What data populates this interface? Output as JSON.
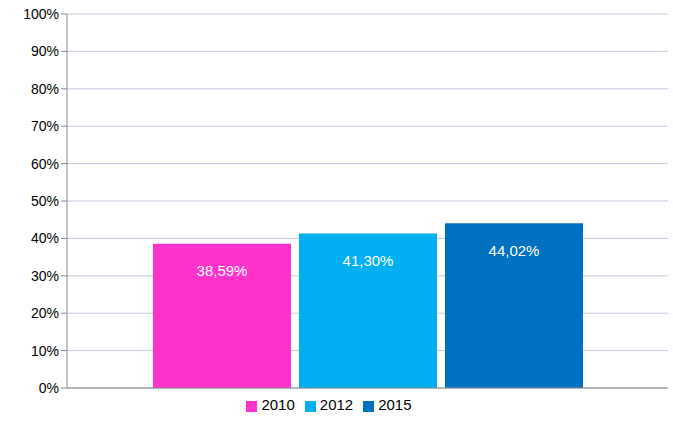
{
  "chart_data": {
    "type": "bar",
    "categories": [
      null
    ],
    "series": [
      {
        "name": "2010",
        "color": "#ff33cc",
        "values": [
          38.59
        ],
        "value_labels": [
          "38,59%"
        ]
      },
      {
        "name": "2012",
        "color": "#00b0f0",
        "values": [
          41.3
        ],
        "value_labels": [
          "41,30%"
        ]
      },
      {
        "name": "2015",
        "color": "#0070c0",
        "values": [
          44.02
        ],
        "value_labels": [
          "44,02%"
        ]
      }
    ],
    "ylim": [
      0,
      100
    ],
    "yticks": [
      {
        "value": 0,
        "label": "0%"
      },
      {
        "value": 10,
        "label": "10%"
      },
      {
        "value": 20,
        "label": "20%"
      },
      {
        "value": 30,
        "label": "30%"
      },
      {
        "value": 40,
        "label": "40%"
      },
      {
        "value": 50,
        "label": "50%"
      },
      {
        "value": 60,
        "label": "60%"
      },
      {
        "value": 70,
        "label": "70%"
      },
      {
        "value": 80,
        "label": "80%"
      },
      {
        "value": 90,
        "label": "90%"
      },
      {
        "value": 100,
        "label": "100%"
      }
    ],
    "grid": true,
    "legend": "bottom",
    "data_labels": true
  }
}
